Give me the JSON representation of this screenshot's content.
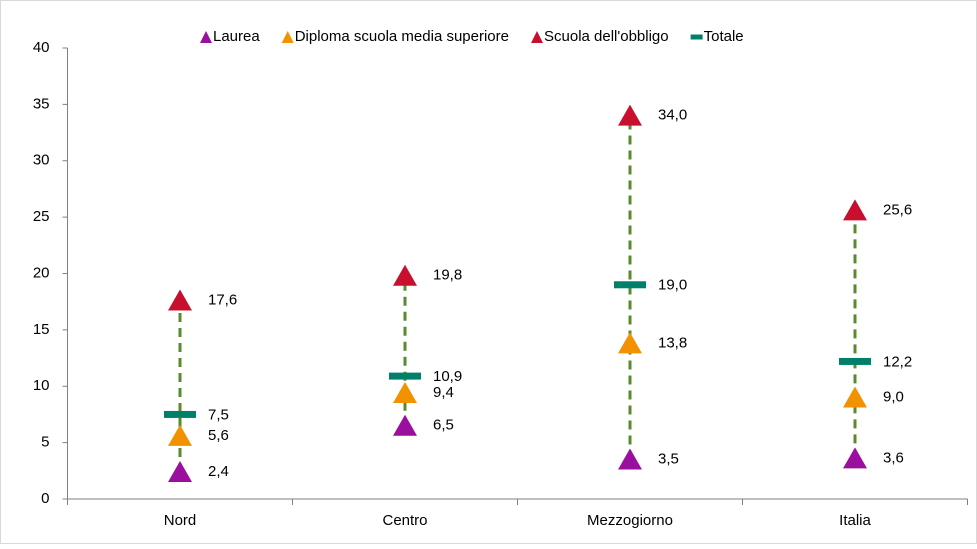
{
  "chart_data": {
    "type": "dot",
    "categories": [
      "Nord",
      "Centro",
      "Mezzogiorno",
      "Italia"
    ],
    "series": [
      {
        "name": "Laurea",
        "color": "#9b0f9e",
        "marker": "triangle",
        "values": [
          2.4,
          6.5,
          3.5,
          3.6
        ],
        "value_labels": [
          "2,4",
          "6,5",
          "3,5",
          "3,6"
        ]
      },
      {
        "name": "Diploma scuola media superiore",
        "color": "#f39200",
        "marker": "triangle",
        "values": [
          5.6,
          9.4,
          13.8,
          9.0
        ],
        "value_labels": [
          "5,6",
          "9,4",
          "13,8",
          "9,0"
        ]
      },
      {
        "name": "Scuola dell'obbligo",
        "color": "#c8102e",
        "marker": "triangle",
        "values": [
          17.6,
          19.8,
          34.0,
          25.6
        ],
        "value_labels": [
          "17,6",
          "19,8",
          "34,0",
          "25,6"
        ]
      },
      {
        "name": "Totale",
        "color": "#00806a",
        "marker": "dash",
        "values": [
          7.5,
          10.9,
          19.0,
          12.2
        ],
        "value_labels": [
          "7,5",
          "10,9",
          "19,0",
          "12,2"
        ]
      }
    ],
    "range_line_color": "#5a8a2e",
    "ylim": [
      0,
      40
    ],
    "yticks": [
      0,
      5,
      10,
      15,
      20,
      25,
      30,
      35,
      40
    ],
    "grid": false,
    "legend": "top"
  }
}
